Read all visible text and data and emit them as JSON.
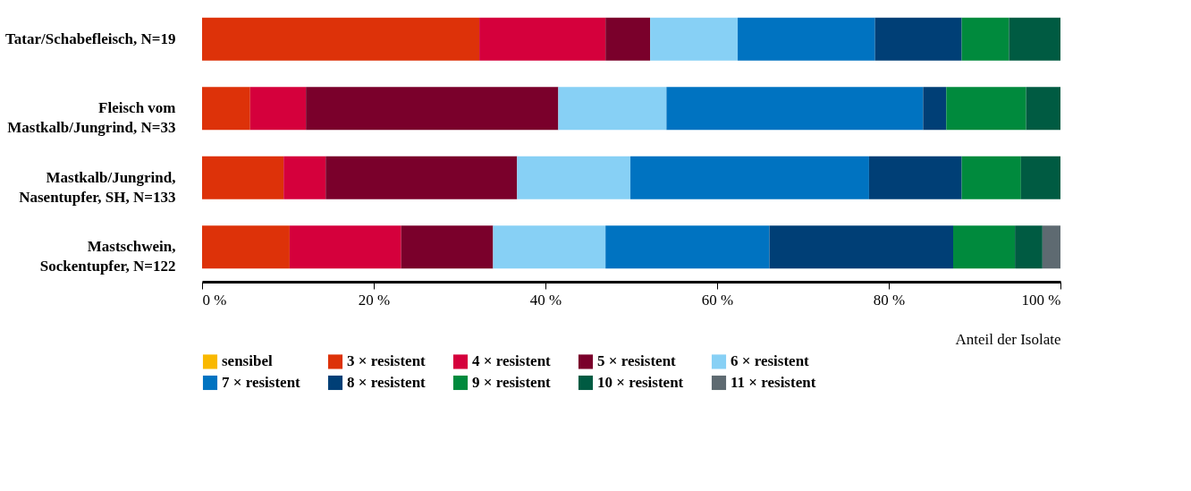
{
  "chart_data": {
    "type": "bar",
    "orientation": "horizontal",
    "stacked": true,
    "xlabel": "Anteil der Isolate",
    "categories": [
      "Tatar/Schabefleisch, N=19",
      "Fleisch vom\nMastkalb/Jungrind, N=33",
      "Mastkalb/Jungrind,\nNasentupfer, SH, N=133",
      "Mastschwein,\nSockentupfer, N=122"
    ],
    "xlim": [
      0,
      100
    ],
    "xticks": [
      {
        "value": 0,
        "label": "0 %"
      },
      {
        "value": 20,
        "label": "20 %"
      },
      {
        "value": 40,
        "label": "40 %"
      },
      {
        "value": 60,
        "label": "60 %"
      },
      {
        "value": 80,
        "label": "80 %"
      },
      {
        "value": 100,
        "label": "100 %"
      }
    ],
    "grid": false,
    "legend": "bottom",
    "series": [
      {
        "name": "sensibel",
        "color": "#f9b800",
        "values": [
          0,
          0,
          0,
          0
        ]
      },
      {
        "name": "3 × resistent",
        "color": "#dd3209",
        "values": [
          32.3,
          5.6,
          9.5,
          10.2
        ]
      },
      {
        "name": "4 × resistent",
        "color": "#d5003c",
        "values": [
          14.7,
          6.5,
          4.9,
          13.0
        ]
      },
      {
        "name": "5 × resistent",
        "color": "#7a002b",
        "values": [
          5.2,
          29.4,
          22.3,
          10.7
        ]
      },
      {
        "name": "6 × resistent",
        "color": "#87d0f5",
        "values": [
          10.2,
          12.6,
          13.2,
          13.1
        ]
      },
      {
        "name": "7 × resistent",
        "color": "#0073c1",
        "values": [
          16.0,
          29.9,
          27.8,
          19.1
        ]
      },
      {
        "name": "8 × resistent",
        "color": "#003f76",
        "values": [
          10.1,
          2.7,
          10.8,
          21.4
        ]
      },
      {
        "name": "9 × resistent",
        "color": "#008a3d",
        "values": [
          5.5,
          9.3,
          6.9,
          7.2
        ]
      },
      {
        "name": "10 × resistent",
        "color": "#005b42",
        "values": [
          6.0,
          4.0,
          4.6,
          3.2
        ]
      },
      {
        "name": "11 × resistent",
        "color": "#5e6a71",
        "values": [
          0,
          0,
          0,
          2.1
        ]
      }
    ]
  }
}
